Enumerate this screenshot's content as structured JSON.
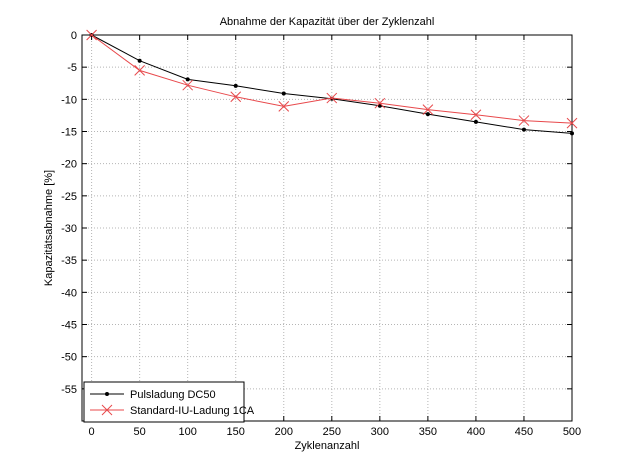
{
  "chart_data": {
    "type": "line",
    "title": "Abnahme der Kapazität über der Zyklenzahl",
    "xlabel": "Zyklenanzahl",
    "ylabel": "Kapazitätsabnahme [%]",
    "xlim": [
      -10,
      500
    ],
    "ylim": [
      -60,
      0
    ],
    "xticks": [
      0,
      50,
      100,
      150,
      200,
      250,
      300,
      350,
      400,
      450,
      500
    ],
    "yticks": [
      0,
      -5,
      -10,
      -15,
      -20,
      -25,
      -30,
      -35,
      -40,
      -45,
      -50,
      -55
    ],
    "grid": true,
    "legend": "bottom-left",
    "series": [
      {
        "name": "Pulsladung DC50",
        "color": "#000000",
        "marker": "dot",
        "x": [
          0,
          50,
          100,
          150,
          200,
          250,
          300,
          350,
          400,
          450,
          500
        ],
        "y": [
          0,
          -4.0,
          -6.9,
          -7.9,
          -9.1,
          -9.9,
          -11.0,
          -12.3,
          -13.5,
          -14.7,
          -15.3
        ]
      },
      {
        "name": "Standard-IU-Ladung 1CA",
        "color": "#e8484b",
        "marker": "x",
        "x": [
          0,
          50,
          100,
          150,
          200,
          250,
          300,
          350,
          400,
          450,
          500
        ],
        "y": [
          0,
          -5.5,
          -7.8,
          -9.6,
          -11.1,
          -9.8,
          -10.6,
          -11.6,
          -12.4,
          -13.3,
          -13.7
        ]
      }
    ]
  }
}
